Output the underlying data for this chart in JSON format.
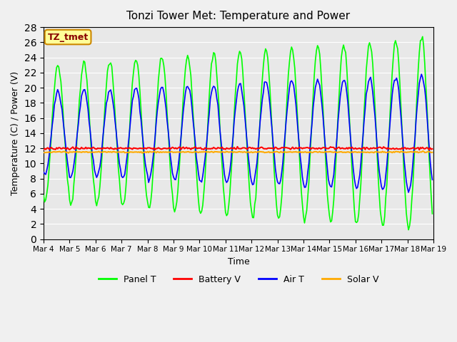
{
  "title": "Tonzi Tower Met: Temperature and Power",
  "xlabel": "Time",
  "ylabel": "Temperature (C) / Power (V)",
  "ylim": [
    0,
    28
  ],
  "yticks": [
    0,
    2,
    4,
    6,
    8,
    10,
    12,
    14,
    16,
    18,
    20,
    22,
    24,
    26,
    28
  ],
  "x_labels": [
    "Mar 4",
    "Mar 5",
    "Mar 6",
    "Mar 7",
    "Mar 8",
    "Mar 9",
    "Mar 10",
    "Mar 11",
    "Mar 12",
    "Mar 13",
    "Mar 14",
    "Mar 15",
    "Mar 16",
    "Mar 17",
    "Mar 18",
    "Mar 19"
  ],
  "num_days": 15,
  "panel_T_color": "#00ff00",
  "battery_V_color": "#ff0000",
  "air_T_color": "#0000ff",
  "solar_V_color": "#ffaa00",
  "background_color": "#e8e8e8",
  "fig_background_color": "#f0f0f0",
  "annotation_text": "TZ_tmet",
  "annotation_bg": "#ffff99",
  "annotation_border": "#cc8800",
  "annotation_fg": "#880000",
  "legend_labels": [
    "Panel T",
    "Battery V",
    "Air T",
    "Solar V"
  ],
  "battery_V_mean": 12.0,
  "solar_V_mean": 11.5
}
